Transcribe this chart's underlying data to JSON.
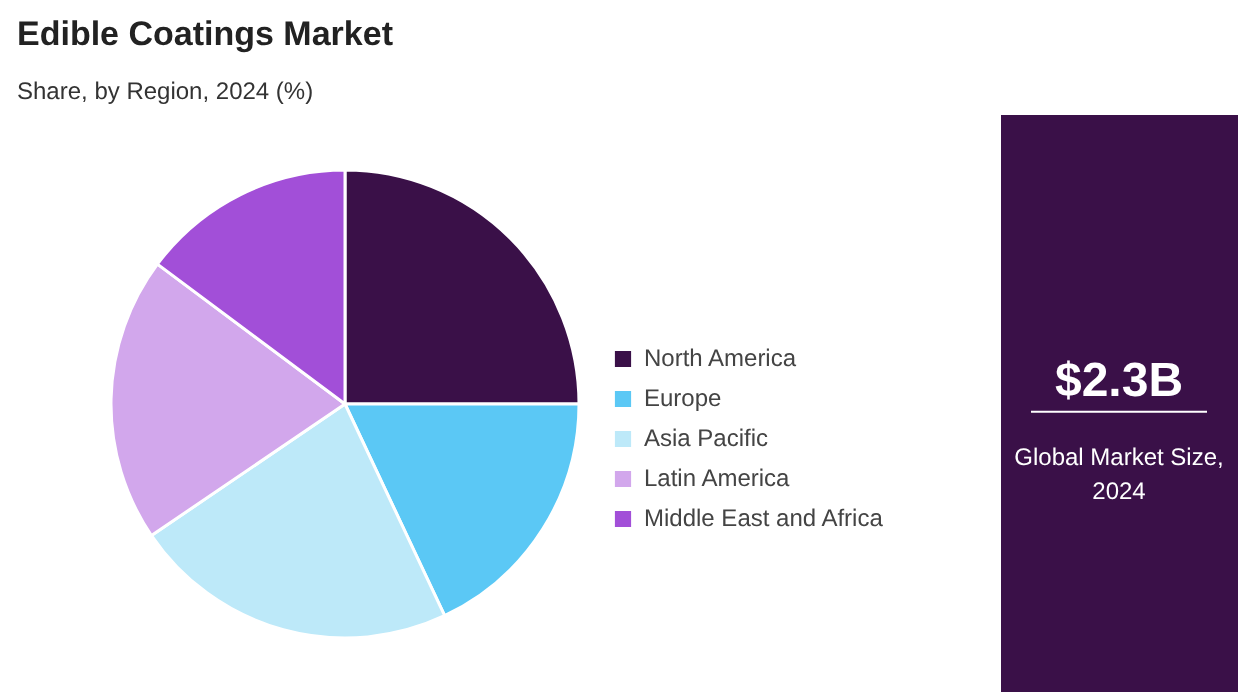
{
  "chart_data": {
    "type": "pie",
    "title": "Edible Coatings Market",
    "subtitle": "Share, by Region, 2024 (%)",
    "categories": [
      "North America",
      "Europe",
      "Asia Pacific",
      "Latin America",
      "Middle East and Africa"
    ],
    "values": [
      25,
      18,
      22.5,
      19.7,
      14.8
    ],
    "colors": [
      "#3a1048",
      "#5bc8f5",
      "#bde9f9",
      "#d2a7ec",
      "#a24fd8"
    ],
    "legend": "right",
    "annotations": [
      "$2.3B",
      "Global Market Size, 2024"
    ]
  }
}
